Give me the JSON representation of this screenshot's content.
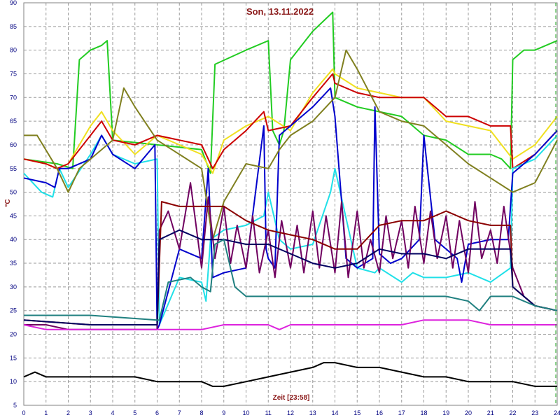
{
  "chart_data": {
    "type": "line",
    "title": "Son, 13.11.2022",
    "xlabel": "Zeit [23:58]",
    "ylabel": "°C",
    "xlim": [
      0,
      24
    ],
    "ylim": [
      5,
      90
    ],
    "grid": true,
    "x_ticks": [
      "0",
      "1",
      "2",
      "3",
      "4",
      "5",
      "6",
      "7",
      "8",
      "9",
      "10",
      "11",
      "12",
      "13",
      "14",
      "15",
      "16",
      "17",
      "18",
      "19",
      "20",
      "21",
      "22",
      "23",
      "24"
    ],
    "y_ticks": [
      "5",
      "10",
      "15",
      "20",
      "25",
      "30",
      "35",
      "40",
      "45",
      "50",
      "55",
      "60",
      "65",
      "70",
      "75",
      "80",
      "85",
      "90"
    ],
    "series": [
      {
        "color": "#22cc22",
        "x": [
          0,
          1.5,
          2.2,
          2.5,
          3.0,
          3.5,
          3.75,
          4.0,
          6.0,
          8.0,
          8.4,
          8.6,
          10.0,
          11.0,
          11.2,
          11.5,
          11.7,
          12.0,
          13.0,
          13.9,
          14.0,
          15.0,
          16.0,
          17.0,
          18.0,
          19.0,
          20.0,
          21.0,
          21.5,
          21.9,
          22.0,
          22.5,
          23.0,
          24.0
        ],
        "y": [
          57,
          56,
          55,
          78,
          80,
          81,
          82,
          61,
          60,
          59,
          54,
          77,
          80,
          82,
          63,
          60,
          63,
          78,
          84,
          88,
          70,
          68,
          67,
          66,
          62,
          61,
          58,
          58,
          57,
          55,
          78,
          80,
          80,
          82
        ]
      },
      {
        "color": "#f0e020",
        "x": [
          0,
          1.0,
          1.5,
          2.0,
          3.0,
          3.5,
          4.0,
          5.0,
          6.0,
          7.0,
          8.0,
          8.5,
          9.0,
          10.0,
          11.0,
          12.0,
          13.0,
          13.9,
          14.0,
          15.0,
          16.0,
          17.0,
          18.0,
          19.0,
          20.0,
          21.0,
          22.0,
          23.0,
          24.0
        ],
        "y": [
          57,
          56,
          55,
          56,
          64,
          67,
          63,
          58,
          62,
          60,
          58,
          54,
          61,
          64,
          66,
          63,
          71,
          76,
          75,
          72,
          71,
          70,
          70,
          65,
          64,
          63,
          57,
          60,
          66
        ]
      },
      {
        "color": "#cc0000",
        "x": [
          0,
          1.0,
          1.5,
          2.0,
          3.0,
          3.5,
          4.0,
          5.0,
          6.0,
          7.0,
          8.0,
          8.5,
          9.0,
          10.0,
          10.8,
          11.0,
          12.0,
          13.0,
          13.9,
          14.0,
          15.0,
          16.0,
          17.0,
          18.0,
          19.0,
          20.0,
          21.0,
          21.9,
          22.0,
          23.0,
          24.0
        ],
        "y": [
          57,
          56,
          55,
          56,
          62,
          65,
          61,
          60,
          62,
          61,
          60,
          55,
          59,
          63,
          67,
          63,
          64,
          70,
          75,
          73,
          71,
          70,
          70,
          70,
          66,
          66,
          64,
          64,
          55,
          58,
          63
        ]
      },
      {
        "color": "#20e0e8",
        "x": [
          0,
          0.8,
          1.3,
          1.6,
          2.0,
          3.0,
          3.5,
          4.0,
          5.0,
          6.0,
          6.1,
          7.0,
          8.0,
          8.2,
          8.4,
          9.0,
          10.0,
          10.8,
          11.0,
          11.5,
          12.0,
          13.0,
          13.8,
          14.0,
          15.0,
          15.8,
          16.0,
          17.0,
          17.5,
          18.0,
          19.0,
          20.0,
          21.0,
          21.9,
          22.0,
          23.0,
          24.0
        ],
        "y": [
          54,
          50,
          49,
          55,
          51,
          58,
          62,
          58,
          56,
          57,
          22,
          32,
          31,
          27,
          40,
          42,
          43,
          45,
          50,
          40,
          38,
          39,
          50,
          55,
          34,
          33,
          34,
          31,
          33,
          32,
          32,
          33,
          31,
          34,
          55,
          57,
          62
        ]
      },
      {
        "color": "#0000cc",
        "x": [
          0,
          1.0,
          1.4,
          1.6,
          2.0,
          3.0,
          3.5,
          4.0,
          5.0,
          5.9,
          6.0,
          6.1,
          7.0,
          8.0,
          8.3,
          8.5,
          9.0,
          10.0,
          10.8,
          10.9,
          11.0,
          11.3,
          11.5,
          12.0,
          13.0,
          13.8,
          14.0,
          14.5,
          15.0,
          15.7,
          15.8,
          16.0,
          16.5,
          17.0,
          17.8,
          18.0,
          18.5,
          19.0,
          19.5,
          19.7,
          20.0,
          21.0,
          21.8,
          22.0,
          23.0,
          24.0
        ],
        "y": [
          53,
          52,
          51,
          55,
          55,
          57,
          62,
          58,
          55,
          60,
          21,
          22,
          38,
          36,
          55,
          32,
          33,
          34,
          64,
          38,
          36,
          34,
          62,
          64,
          68,
          72,
          66,
          36,
          34,
          36,
          68,
          37,
          35,
          36,
          40,
          62,
          40,
          38,
          36,
          31,
          39,
          40,
          40,
          54,
          58,
          63
        ]
      },
      {
        "color": "#808020",
        "x": [
          0,
          0.6,
          1.5,
          2.0,
          2.5,
          3.0,
          4.0,
          4.5,
          5.0,
          6.0,
          7.0,
          8.0,
          8.5,
          9.0,
          10.0,
          11.0,
          11.5,
          12.0,
          13.0,
          14.0,
          14.5,
          15.0,
          16.0,
          17.0,
          18.0,
          19.0,
          20.0,
          21.0,
          22.0,
          23.0,
          24.0
        ],
        "y": [
          62,
          62,
          55,
          50,
          55,
          57,
          61,
          72,
          68,
          61,
          58,
          55,
          40,
          48,
          56,
          55,
          59,
          62,
          65,
          70,
          80,
          76,
          67,
          65,
          64,
          60,
          56,
          53,
          50,
          52,
          61
        ]
      },
      {
        "color": "#700060",
        "x": [
          0,
          1.0,
          2.0,
          3.0,
          4.0,
          5.0,
          6.0,
          6.1,
          6.5,
          7.0,
          7.5,
          8.0,
          8.3,
          8.6,
          9.0,
          9.3,
          9.6,
          10.0,
          10.3,
          10.6,
          11.0,
          11.3,
          11.6,
          12.0,
          12.3,
          12.6,
          13.0,
          13.3,
          13.6,
          14.0,
          14.3,
          14.6,
          15.0,
          15.3,
          15.6,
          16.0,
          16.3,
          16.6,
          17.0,
          17.3,
          17.6,
          18.0,
          18.3,
          18.6,
          19.0,
          19.3,
          19.6,
          20.0,
          20.3,
          20.6,
          21.0,
          21.3,
          21.6,
          22.0,
          22.5,
          23.0,
          24.0
        ],
        "y": [
          22,
          22,
          21,
          21,
          21,
          21,
          21,
          42,
          46,
          38,
          52,
          34,
          49,
          36,
          47,
          35,
          43,
          34,
          45,
          33,
          42,
          32,
          44,
          34,
          43,
          33,
          46,
          34,
          45,
          33,
          48,
          32,
          46,
          34,
          40,
          33,
          45,
          36,
          44,
          34,
          47,
          35,
          46,
          36,
          45,
          34,
          44,
          33,
          48,
          36,
          42,
          35,
          47,
          34,
          28,
          26,
          25
        ]
      },
      {
        "color": "#8b0000",
        "x": [
          0,
          3.0,
          6.0,
          6.2,
          7.0,
          8.0,
          9.0,
          10.0,
          11.0,
          12.0,
          13.0,
          14.0,
          15.0,
          16.0,
          17.0,
          18.0,
          19.0,
          20.0,
          21.0,
          21.9,
          22.0,
          23.0,
          24.0
        ],
        "y": [
          23,
          22,
          22,
          48,
          47,
          47,
          47,
          44,
          42,
          41,
          40,
          38,
          38,
          43,
          44,
          44,
          46,
          44,
          43,
          43,
          30,
          26,
          25
        ]
      },
      {
        "color": "#000060",
        "x": [
          0,
          3.0,
          6.0,
          6.1,
          7.0,
          8.0,
          9.0,
          10.0,
          11.0,
          12.0,
          13.0,
          14.0,
          15.0,
          16.0,
          17.0,
          18.0,
          19.0,
          20.0,
          21.0,
          21.9,
          22.0,
          23.0,
          24.0
        ],
        "y": [
          23,
          22,
          22,
          40,
          42,
          40,
          40,
          39,
          39,
          37,
          35,
          34,
          35,
          38,
          37,
          37,
          36,
          38,
          38,
          38,
          30,
          26,
          25
        ]
      },
      {
        "color": "#208080",
        "x": [
          0,
          3.0,
          6.0,
          6.1,
          6.5,
          7.5,
          8.0,
          8.4,
          8.6,
          9.0,
          9.5,
          10.0,
          11.0,
          12.0,
          13.0,
          14.0,
          15.0,
          16.0,
          17.0,
          18.0,
          19.0,
          20.0,
          20.5,
          21.0,
          22.0,
          23.0,
          24.0
        ],
        "y": [
          24,
          24,
          23,
          23,
          31,
          32,
          30,
          29,
          39,
          40,
          30,
          28,
          28,
          28,
          28,
          28,
          28,
          28,
          28,
          28,
          28,
          27,
          25,
          28,
          28,
          26,
          25
        ]
      },
      {
        "color": "#dd22dd",
        "x": [
          0,
          1.0,
          2.0,
          4.0,
          5.0,
          6.0,
          7.0,
          8.0,
          9.0,
          10.0,
          11.0,
          11.5,
          12.0,
          13.0,
          14.0,
          15.0,
          16.0,
          17.0,
          18.0,
          19.0,
          20.0,
          21.0,
          22.0,
          23.0,
          24.0
        ],
        "y": [
          22,
          21,
          21,
          21,
          21,
          21,
          21,
          21,
          22,
          22,
          22,
          21,
          22,
          22,
          22,
          22,
          22,
          22,
          23,
          23,
          23,
          22,
          22,
          22,
          22
        ]
      },
      {
        "color": "#000000",
        "x": [
          0,
          0.5,
          1.0,
          2.0,
          3.0,
          4.0,
          5.0,
          6.0,
          7.0,
          8.0,
          8.5,
          9.0,
          10.0,
          11.0,
          12.0,
          13.0,
          13.5,
          14.0,
          15.0,
          16.0,
          17.0,
          18.0,
          19.0,
          20.0,
          21.0,
          22.0,
          23.0,
          24.0
        ],
        "y": [
          11,
          12,
          11,
          11,
          11,
          11,
          11,
          10,
          10,
          10,
          9,
          9,
          10,
          11,
          12,
          13,
          14,
          14,
          13,
          13,
          12,
          11,
          11,
          10,
          10,
          10,
          9,
          9
        ]
      }
    ]
  }
}
